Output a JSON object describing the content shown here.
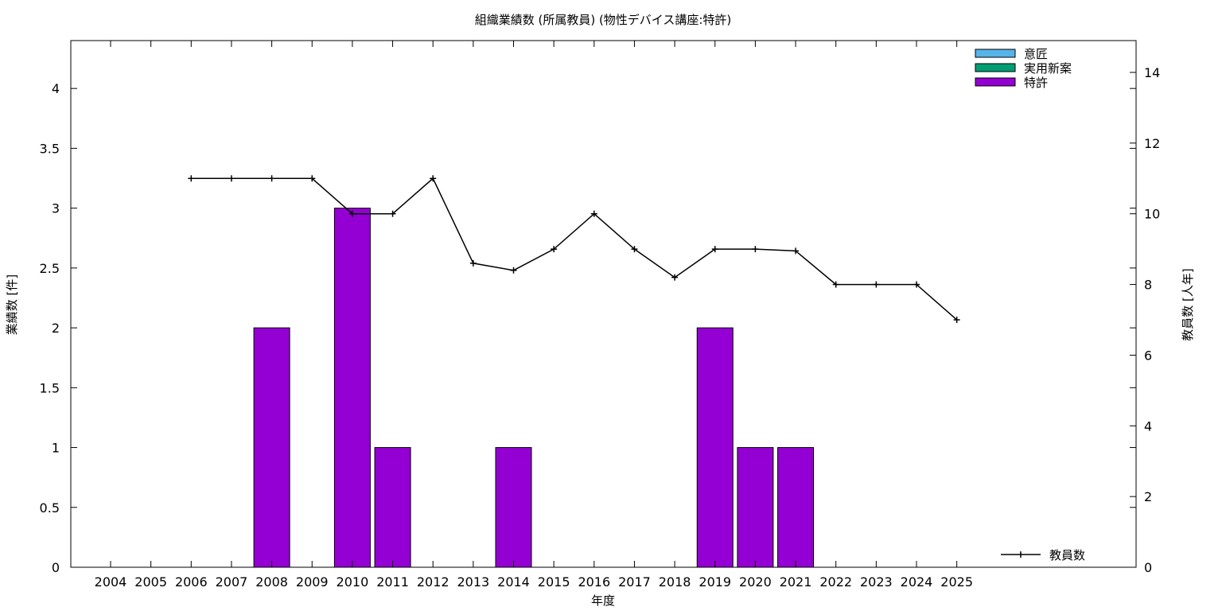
{
  "chart_data": {
    "type": "bar",
    "title": "組織業績数 (所属教員) (物性デバイス講座:特許)",
    "xlabel": "年度",
    "ylabel": "業績数 [件]",
    "y2label": "教員数 [人年]",
    "categories": [
      "2004",
      "2005",
      "2006",
      "2007",
      "2008",
      "2009",
      "2010",
      "2011",
      "2012",
      "2013",
      "2014",
      "2015",
      "2016",
      "2017",
      "2018",
      "2019",
      "2020",
      "2021",
      "2022",
      "2023",
      "2024",
      "2025"
    ],
    "ylim": [
      0,
      4.4
    ],
    "yticks": [
      "0",
      "0.5",
      "1",
      "1.5",
      "2",
      "2.5",
      "3",
      "3.5",
      "4"
    ],
    "y2lim": [
      0,
      14.9
    ],
    "y2ticks": [
      "0",
      "2",
      "4",
      "6",
      "8",
      "10",
      "12",
      "14"
    ],
    "series": [
      {
        "name": "意匠",
        "color": "#56b4e9",
        "values": [
          0,
          0,
          0,
          0,
          0,
          0,
          0,
          0,
          0,
          0,
          0,
          0,
          0,
          0,
          0,
          0,
          0,
          0,
          0,
          0,
          0,
          0
        ]
      },
      {
        "name": "実用新案",
        "color": "#009e73",
        "values": [
          0,
          0,
          0,
          0,
          0,
          0,
          0,
          0,
          0,
          0,
          0,
          0,
          0,
          0,
          0,
          0,
          0,
          0,
          0,
          0,
          0,
          0
        ]
      },
      {
        "name": "特許",
        "color": "#9400d3",
        "values": [
          0,
          0,
          0,
          0,
          2,
          0,
          3,
          1,
          0,
          0,
          1,
          0,
          0,
          0,
          0,
          2,
          1,
          1,
          0,
          0,
          0,
          0
        ]
      }
    ],
    "line_series": {
      "name": "教員数",
      "color": "#000000",
      "axis": "y2",
      "x": [
        "2006",
        "2007",
        "2008",
        "2009",
        "2010",
        "2011",
        "2012",
        "2013",
        "2014",
        "2015",
        "2016",
        "2017",
        "2018",
        "2019",
        "2020",
        "2021",
        "2022",
        "2023",
        "2024",
        "2025"
      ],
      "values": [
        11,
        11,
        11,
        11,
        10,
        10,
        11,
        8.6,
        8.4,
        9,
        10,
        9,
        8.2,
        9,
        9,
        8.95,
        8,
        8,
        8,
        7
      ]
    },
    "legend": {
      "bars_position": "top-right",
      "line_position": "bottom-right"
    },
    "grid": false
  }
}
